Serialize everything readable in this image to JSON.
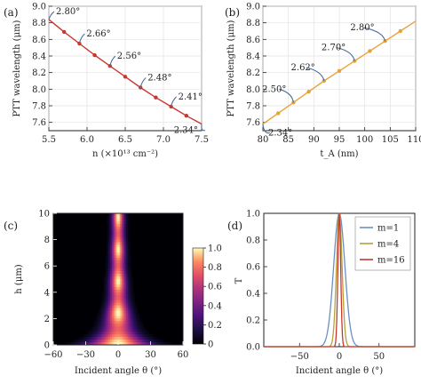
{
  "panels": {
    "a": "(a)",
    "b": "(b)",
    "c": "(c)",
    "d": "(d)"
  },
  "colors": {
    "panel_a_line": "#c8372d",
    "panel_b_line": "#e8a23a",
    "annotation": "#4a6f9e",
    "d_m1": "#6b8fc2",
    "d_m4": "#b5a23a",
    "d_m16": "#c8372d"
  },
  "chart_data": [
    {
      "id": "a",
      "type": "line",
      "xlabel": "n (×10¹³ cm⁻²)",
      "ylabel": "PTT wavelength (μm)",
      "xlim": [
        5.5,
        7.5
      ],
      "ylim": [
        7.5,
        9.0
      ],
      "xticks": [
        "5.5",
        "6.0",
        "6.5",
        "7.0",
        "7.5"
      ],
      "yticks": [
        "7.6",
        "7.8",
        "8.0",
        "8.2",
        "8.4",
        "8.6",
        "8.8",
        "9.0"
      ],
      "curve": {
        "x": [
          5.5,
          5.7,
          5.9,
          6.1,
          6.3,
          6.5,
          6.7,
          6.9,
          7.1,
          7.3,
          7.5
        ],
        "y": [
          8.84,
          8.69,
          8.55,
          8.41,
          8.28,
          8.15,
          8.02,
          7.9,
          7.79,
          7.68,
          7.58
        ]
      },
      "markers": {
        "x": [
          5.7,
          5.9,
          6.1,
          6.3,
          6.5,
          6.7,
          6.9,
          7.1,
          7.3
        ],
        "y": [
          8.69,
          8.55,
          8.41,
          8.28,
          8.15,
          8.02,
          7.9,
          7.79,
          7.68
        ]
      },
      "annotations": [
        {
          "text": "2.80°",
          "x": 5.5,
          "y": 8.84
        },
        {
          "text": "2.66°",
          "x": 5.9,
          "y": 8.55
        },
        {
          "text": "2.56°",
          "x": 6.3,
          "y": 8.28
        },
        {
          "text": "2.48°",
          "x": 6.7,
          "y": 8.02
        },
        {
          "text": "2.41°",
          "x": 7.1,
          "y": 7.79
        },
        {
          "text": "2.34°",
          "x": 7.5,
          "y": 7.58
        }
      ]
    },
    {
      "id": "b",
      "type": "line",
      "xlabel": "t_A (nm)",
      "ylabel": "PTT wavelength (μm)",
      "xlim": [
        80,
        110
      ],
      "ylim": [
        7.5,
        9.0
      ],
      "xticks": [
        "80",
        "85",
        "90",
        "95",
        "100",
        "105",
        "110"
      ],
      "yticks": [
        "7.6",
        "7.8",
        "8.0",
        "8.2",
        "8.4",
        "8.6",
        "8.8",
        "9.0"
      ],
      "curve": {
        "x": [
          80,
          83,
          86,
          89,
          92,
          95,
          98,
          101,
          104,
          107,
          110
        ],
        "y": [
          7.58,
          7.71,
          7.84,
          7.97,
          8.1,
          8.22,
          8.34,
          8.46,
          8.58,
          8.7,
          8.82
        ]
      },
      "markers": {
        "x": [
          83,
          86,
          89,
          92,
          95,
          98,
          101,
          104,
          107
        ],
        "y": [
          7.71,
          7.84,
          7.97,
          8.1,
          8.22,
          8.34,
          8.46,
          8.58,
          8.7
        ]
      },
      "annotations": [
        {
          "text": "2.34°",
          "x": 80,
          "y": 7.58
        },
        {
          "text": "2.50°",
          "x": 86,
          "y": 7.84
        },
        {
          "text": "2.62°",
          "x": 92,
          "y": 8.1
        },
        {
          "text": "2.70°",
          "x": 98,
          "y": 8.34
        },
        {
          "text": "2.80°",
          "x": 104,
          "y": 8.58
        }
      ]
    },
    {
      "id": "c",
      "type": "heatmap",
      "xlabel": "Incident angle θ (°)",
      "ylabel": "h (μm)",
      "xlim": [
        -60,
        60
      ],
      "ylim": [
        0,
        10
      ],
      "xticks": [
        "−60",
        "−30",
        "0",
        "30",
        "60"
      ],
      "yticks": [
        "0",
        "2",
        "4",
        "6",
        "8",
        "10"
      ],
      "colorbar": {
        "min": 0,
        "max": 1,
        "ticks": [
          "0",
          "0.2",
          "0.4",
          "0.6",
          "0.8",
          "1.0"
        ],
        "colormap": "magma"
      }
    },
    {
      "id": "d",
      "type": "line",
      "xlabel": "Incident angle θ (°)",
      "ylabel": "T",
      "xlim": [
        -95,
        95
      ],
      "ylim": [
        0,
        1
      ],
      "xticks": [
        "−50",
        "0",
        "50"
      ],
      "yticks": [
        "0.0",
        "0.2",
        "0.4",
        "0.6",
        "0.8",
        "1.0"
      ],
      "series": [
        {
          "name": "m=1",
          "width_deg": 10
        },
        {
          "name": "m=4",
          "width_deg": 5
        },
        {
          "name": "m=16",
          "width_deg": 2.5
        }
      ],
      "legend": {
        "position": "top-right",
        "labels": [
          "m=1",
          "m=4",
          "m=16"
        ]
      }
    }
  ]
}
